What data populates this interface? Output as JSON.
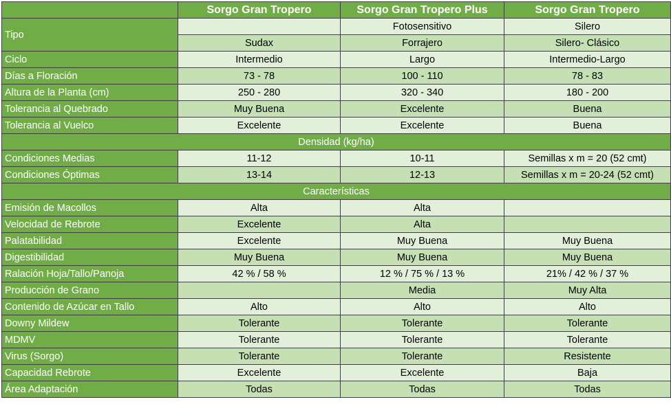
{
  "headers": [
    "Sorgo Gran Tropero",
    "Sorgo Gran Tropero Plus",
    "Sorgo Gran Tropero"
  ],
  "tipo": {
    "label": "Tipo",
    "row1": [
      "",
      "Fotosensitivo",
      "Silero"
    ],
    "row2": [
      "Sudax",
      "Forrajero",
      "Silero- Clásico"
    ]
  },
  "rows_a": [
    {
      "label": "Ciclo",
      "values": [
        "Intermedio",
        "Largo",
        "Intermedio-Largo"
      ]
    },
    {
      "label": "Días a Floración",
      "values": [
        "73 - 78",
        "100 - 110",
        "78 - 83"
      ]
    },
    {
      "label": "Altura de la Planta (cm)",
      "values": [
        "250 - 280",
        "320 - 340",
        "180 - 200"
      ]
    },
    {
      "label": "Tolerancia al Quebrado",
      "values": [
        "Muy Buena",
        "Excelente",
        "Buena"
      ]
    },
    {
      "label": "Tolerancia al Vuelco",
      "values": [
        "Excelente",
        "Excelente",
        "Buena"
      ]
    }
  ],
  "section_densidad": "Densidad (kg/ha)",
  "rows_b": [
    {
      "label": "Condiciones Medias",
      "values": [
        "11-12",
        "10-11",
        "Semillas x m = 20 (52 cmt)"
      ]
    },
    {
      "label": "Condiciones Óptimas",
      "values": [
        "13-14",
        "12-13",
        "Semillas x m = 20-24 (52 cmt)"
      ]
    }
  ],
  "section_caracteristicas": "Características",
  "rows_c": [
    {
      "label": "Emisión de Macollos",
      "values": [
        "Alta",
        "Alta",
        ""
      ]
    },
    {
      "label": "Velocidad de Rebrote",
      "values": [
        "Excelente",
        "Alta",
        ""
      ]
    },
    {
      "label": "Palatabilidad",
      "values": [
        "Excelente",
        "Muy Buena",
        "Muy Buena"
      ]
    },
    {
      "label": "Digestibilidad",
      "values": [
        "Muy Buena",
        "Muy Buena",
        "Muy Buena"
      ]
    },
    {
      "label": "Ralación Hoja/Tallo/Panoja",
      "values": [
        "42 % / 58 %",
        "12 % / 75 % / 13 %",
        "21% / 42 % / 37 %"
      ]
    },
    {
      "label": "Producción de Grano",
      "values": [
        "",
        "Media",
        "Muy Alta"
      ]
    },
    {
      "label": "Contenido de Azúcar en Tallo",
      "values": [
        "Alto",
        "Alto",
        "Alto"
      ]
    },
    {
      "label": "Downy Mildew",
      "values": [
        "Tolerante",
        "Tolerante",
        "Tolerante"
      ]
    },
    {
      "label": "MDMV",
      "values": [
        "Tolerante",
        "Tolerante",
        "Tolerante"
      ]
    },
    {
      "label": "Virus (Sorgo)",
      "values": [
        "Tolerante",
        "Tolerante",
        "Resistente"
      ]
    },
    {
      "label": "Capacidad Rebrote",
      "values": [
        "Excelente",
        "Excelente",
        "Baja"
      ]
    },
    {
      "label": "Área Adaptación",
      "values": [
        "Todas",
        "Todas",
        "Todas"
      ]
    }
  ],
  "colors": {
    "header_green": "#70ad47",
    "row_light": "#e2efd9",
    "row_dark": "#c5e0b3",
    "border": "#3f3f3f"
  }
}
